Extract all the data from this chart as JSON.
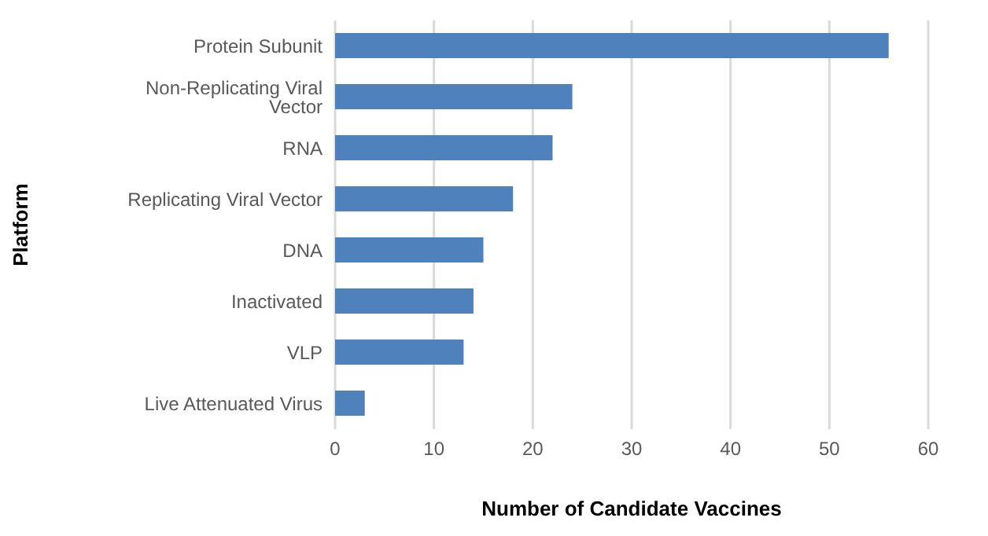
{
  "chart_data": {
    "type": "bar",
    "orientation": "horizontal",
    "xlabel": "Number of Candidate Vaccines",
    "ylabel": "Platform",
    "categories": [
      "Protein Subunit",
      "Non-Replicating Viral Vector",
      "RNA",
      "Replicating Viral Vector",
      "DNA",
      "Inactivated",
      "VLP",
      "Live Attenuated Virus"
    ],
    "values": [
      56,
      24,
      22,
      18,
      15,
      14,
      13,
      3
    ],
    "color": "#4f81bd",
    "xlim": [
      0,
      60
    ],
    "xticks": [
      0,
      10,
      20,
      30,
      40,
      50,
      60
    ],
    "grid": "x",
    "legend": false
  }
}
